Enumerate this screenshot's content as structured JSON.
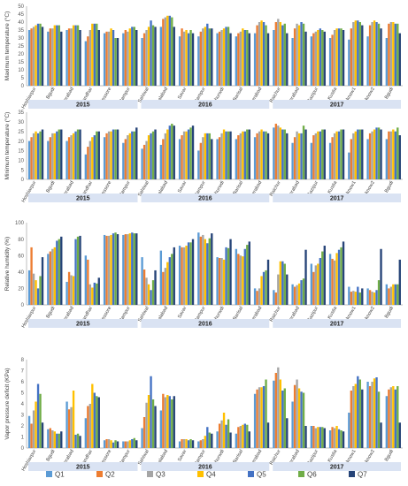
{
  "legend": {
    "entries": [
      "Q1",
      "Q2",
      "Q3",
      "Q4",
      "Q5",
      "Q6",
      "Q7"
    ],
    "colors": [
      "#5b9bd5",
      "#ed7d31",
      "#a5a5a5",
      "#ffc000",
      "#4472c4",
      "#70ad47",
      "#264478"
    ],
    "placement": "bottom-center"
  },
  "year_bar_color": "#dae3f3",
  "chart_data": [
    {
      "type": "bar",
      "ylabel": "Maximum temperature (°C)",
      "ylim": [
        0,
        50
      ],
      "yticks": [
        0,
        5,
        10,
        15,
        20,
        25,
        30,
        35,
        40,
        45,
        50
      ],
      "grid": false,
      "categories": [
        "Hoshiarpur",
        "Bgudi",
        "Hyderabad",
        "Jalandhar",
        "Jessore",
        "Rampur",
        "Sahiwal",
        "Faisalabad",
        "Savar",
        "Rampur",
        "Ishurwdi",
        "Barisal",
        "Hyderabad",
        "Raichur",
        "Hyderabad",
        "Gazipur",
        "Kustia",
        "Lucknow1",
        "Lucknow2",
        "Bgudi"
      ],
      "year_groups": [
        {
          "label": "2015",
          "count": 6
        },
        {
          "label": "2016",
          "count": 7
        },
        {
          "label": "2017",
          "count": 7
        }
      ],
      "series": [
        {
          "name": "Q1",
          "values": [
            35,
            34,
            35,
            28,
            33,
            33,
            30,
            37,
            31,
            31,
            33,
            31,
            33,
            35,
            30,
            31,
            30,
            29,
            31,
            30
          ]
        },
        {
          "name": "Q2",
          "values": [
            36,
            36,
            36,
            31,
            34,
            35,
            33,
            42,
            36,
            34,
            34,
            33,
            38,
            40,
            36,
            33,
            32,
            36,
            38,
            39
          ]
        },
        {
          "name": "Q3",
          "values": [
            37,
            36,
            36,
            35,
            34,
            34,
            35,
            43,
            34,
            36,
            35,
            34,
            40,
            42,
            39,
            34,
            35,
            40,
            40,
            40
          ]
        },
        {
          "name": "Q4",
          "values": [
            38,
            38,
            38,
            39,
            36,
            36,
            37,
            44,
            35,
            37,
            36,
            36,
            41,
            40,
            38,
            35,
            36,
            41,
            41,
            40
          ]
        },
        {
          "name": "Q5",
          "values": [
            39,
            38,
            38,
            39,
            35,
            37,
            41,
            44,
            33,
            39,
            37,
            35,
            40,
            38,
            40,
            36,
            36,
            41,
            40,
            39
          ]
        },
        {
          "name": "Q6",
          "values": [
            39,
            38,
            38,
            39,
            30,
            37,
            38,
            43,
            35,
            36,
            37,
            35,
            38,
            39,
            39,
            35,
            36,
            40,
            39,
            39
          ]
        },
        {
          "name": "Q7",
          "values": [
            37,
            34,
            35,
            35,
            30,
            35,
            37,
            37,
            33,
            36,
            33,
            33,
            33,
            33,
            34,
            34,
            35,
            38,
            36,
            33
          ]
        }
      ]
    },
    {
      "type": "bar",
      "ylabel": "Minimum temperature (°C)",
      "ylim": [
        0,
        35
      ],
      "yticks": [
        0,
        5,
        10,
        15,
        20,
        25,
        30,
        35
      ],
      "grid": false,
      "categories": [
        "Hoshiarpur",
        "Bgudi",
        "Hyderabad",
        "Jalandhar",
        "Jessore",
        "Rampur",
        "Sahiwal",
        "Faisalabad",
        "Savar",
        "Rampur",
        "Ishurwdi",
        "Barisal",
        "Hyderabad",
        "Raichur",
        "Hyderabad",
        "Gazipur",
        "Kustia",
        "Lucknow1",
        "Lucknow2",
        "Bgudi"
      ],
      "year_groups": [
        {
          "label": "2015",
          "count": 6
        },
        {
          "label": "2016",
          "count": 7
        },
        {
          "label": "2017",
          "count": 7
        }
      ],
      "series": [
        {
          "name": "Q1",
          "values": [
            20,
            20,
            20,
            13,
            22,
            19,
            16,
            18,
            21,
            15,
            21,
            21,
            22,
            27,
            19,
            19,
            19,
            14,
            21,
            21
          ]
        },
        {
          "name": "Q2",
          "values": [
            22,
            22,
            22,
            17,
            24,
            21,
            18,
            21,
            23,
            19,
            22,
            23,
            24,
            29,
            22,
            23,
            22,
            21,
            24,
            25
          ]
        },
        {
          "name": "Q3",
          "values": [
            24,
            24,
            23,
            20,
            25,
            23,
            20,
            24,
            25,
            22,
            24,
            24,
            25,
            28,
            25,
            24,
            24,
            24,
            25,
            25
          ]
        },
        {
          "name": "Q4",
          "values": [
            25,
            24,
            24,
            22,
            25,
            24,
            23,
            26,
            25,
            24,
            26,
            25,
            26,
            27,
            24,
            25,
            25,
            25,
            26,
            26
          ]
        },
        {
          "name": "Q5",
          "values": [
            24,
            25,
            25,
            23,
            26,
            25,
            24,
            28,
            26,
            24,
            25,
            25,
            25,
            26,
            24,
            25,
            25,
            26,
            27,
            25
          ]
        },
        {
          "name": "Q6",
          "values": [
            25,
            26,
            26,
            25,
            26,
            25,
            25,
            29,
            27,
            24,
            25,
            26,
            25,
            26,
            28,
            26,
            26,
            26,
            27,
            27
          ]
        },
        {
          "name": "Q7",
          "values": [
            26,
            26,
            26,
            25,
            26,
            27,
            26,
            28,
            28,
            21,
            25,
            26,
            24,
            24,
            26,
            26,
            26,
            26,
            26,
            23
          ]
        }
      ]
    },
    {
      "type": "bar",
      "ylabel": "Relative humidity (%)",
      "ylim": [
        0,
        100
      ],
      "yticks": [
        0,
        20,
        40,
        60,
        80,
        100
      ],
      "grid": false,
      "categories": [
        "Hoshiarpur",
        "Bgudi",
        "Hyderabad",
        "Jalandhar",
        "Jessore",
        "Rampur",
        "Sahiwal",
        "Faisalabad",
        "Savar",
        "Rampur",
        "Ishurwdi",
        "Barisal",
        "Hyderabad",
        "Raichur",
        "Hyderabad",
        "Gazipur",
        "Kustia",
        "Lucknow1",
        "Lucknow2",
        "Bgudi"
      ],
      "year_groups": [
        {
          "label": "2015",
          "count": 6
        },
        {
          "label": "2016",
          "count": 7
        },
        {
          "label": "2017",
          "count": 7
        }
      ],
      "series": [
        {
          "name": "Q1",
          "values": [
            42,
            62,
            28,
            60,
            85,
            85,
            58,
            66,
            72,
            88,
            58,
            68,
            20,
            18,
            25,
            50,
            62,
            22,
            20,
            25
          ]
        },
        {
          "name": "Q2",
          "values": [
            70,
            65,
            40,
            55,
            84,
            86,
            43,
            40,
            70,
            83,
            57,
            62,
            17,
            15,
            22,
            40,
            56,
            16,
            18,
            20
          ]
        },
        {
          "name": "Q3",
          "values": [
            38,
            68,
            36,
            25,
            84,
            86,
            33,
            45,
            70,
            85,
            57,
            60,
            20,
            37,
            24,
            48,
            54,
            17,
            16,
            22
          ]
        },
        {
          "name": "Q4",
          "values": [
            30,
            70,
            35,
            21,
            85,
            87,
            25,
            52,
            72,
            80,
            55,
            59,
            35,
            53,
            26,
            50,
            63,
            16,
            15,
            25
          ]
        },
        {
          "name": "Q5",
          "values": [
            20,
            78,
            80,
            27,
            87,
            88,
            18,
            58,
            76,
            75,
            70,
            68,
            40,
            53,
            30,
            57,
            67,
            22,
            18,
            25
          ]
        },
        {
          "name": "Q6",
          "values": [
            35,
            80,
            83,
            26,
            88,
            87,
            30,
            62,
            76,
            81,
            69,
            73,
            42,
            50,
            32,
            65,
            70,
            15,
            30,
            25
          ]
        },
        {
          "name": "Q7",
          "values": [
            58,
            83,
            84,
            33,
            86,
            87,
            42,
            70,
            80,
            87,
            80,
            77,
            55,
            37,
            67,
            72,
            77,
            20,
            68,
            55
          ]
        }
      ]
    },
    {
      "type": "bar",
      "ylabel": "Vapor pressure deficit (KPa)",
      "ylim": [
        0,
        8
      ],
      "yticks": [
        0,
        1,
        2,
        3,
        4,
        5,
        6,
        7,
        8
      ],
      "grid": false,
      "categories": [
        "Hoshiarpur",
        "Bgudi",
        "Hyderabad",
        "Jalandhar",
        "Jessore",
        "Rampur",
        "Sahiwal",
        "Faisalabad",
        "Savar",
        "Rampur",
        "Ishurwdi",
        "Barisal",
        "Hyderabad",
        "Raichur",
        "Hyderabad",
        "Gazipur",
        "Kustia",
        "Lucknow1",
        "Lucknow2",
        "Bgudi"
      ],
      "year_groups": [
        {
          "label": "2015",
          "count": 6
        },
        {
          "label": "2016",
          "count": 7
        },
        {
          "label": "2017",
          "count": 7
        }
      ],
      "series": [
        {
          "name": "Q1",
          "values": [
            2.9,
            1.7,
            4.2,
            2.7,
            0.7,
            0.6,
            1.8,
            3.4,
            0.6,
            0.6,
            1.5,
            1.3,
            4.9,
            6.1,
            4.2,
            2.0,
            1.6,
            3.2,
            6.0,
            4.7
          ]
        },
        {
          "name": "Q2",
          "values": [
            2.2,
            1.8,
            3.5,
            3.8,
            0.8,
            0.6,
            2.8,
            4.9,
            0.8,
            0.7,
            2.2,
            1.9,
            5.3,
            6.8,
            5.7,
            2.0,
            1.9,
            5.2,
            5.6,
            5.3
          ]
        },
        {
          "name": "Q3",
          "values": [
            3.4,
            1.6,
            3.7,
            4.0,
            0.8,
            0.6,
            4.1,
            4.6,
            0.8,
            0.8,
            2.5,
            2.0,
            5.5,
            7.3,
            6.2,
            1.8,
            1.8,
            5.6,
            6.0,
            5.5
          ]
        },
        {
          "name": "Q4",
          "values": [
            4.2,
            1.5,
            5.2,
            5.8,
            0.7,
            0.7,
            4.8,
            4.8,
            0.8,
            1.1,
            3.2,
            2.1,
            5.5,
            6.2,
            5.4,
            1.9,
            2.0,
            5.8,
            6.3,
            5.6
          ]
        },
        {
          "name": "Q5",
          "values": [
            5.8,
            1.3,
            1.2,
            5.0,
            0.5,
            0.8,
            6.5,
            4.7,
            0.7,
            1.9,
            2.1,
            2.2,
            5.6,
            5.2,
            5.1,
            1.9,
            1.7,
            6.5,
            6.4,
            5.3
          ]
        },
        {
          "name": "Q6",
          "values": [
            4.9,
            1.3,
            1.3,
            4.7,
            0.7,
            0.9,
            4.4,
            4.4,
            0.8,
            1.4,
            2.6,
            2.1,
            6.2,
            5.4,
            5.0,
            1.9,
            1.6,
            6.2,
            5.1,
            5.6
          ]
        },
        {
          "name": "Q7",
          "values": [
            2.3,
            1.5,
            1.1,
            4.6,
            0.6,
            0.7,
            3.8,
            4.7,
            0.7,
            1.3,
            1.4,
            1.5,
            2.3,
            2.7,
            2.0,
            1.8,
            1.5,
            5.3,
            2.3,
            2.3
          ]
        }
      ]
    }
  ]
}
